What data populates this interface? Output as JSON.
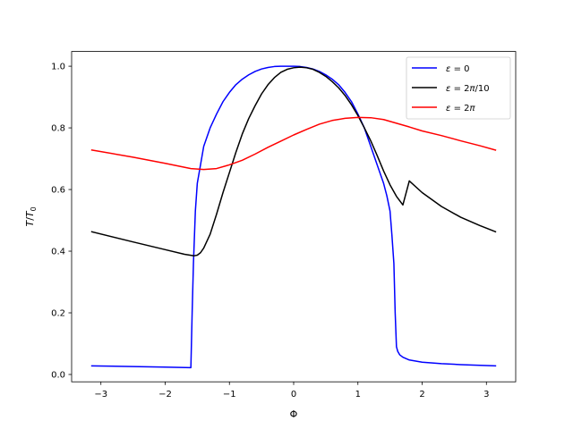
{
  "chart_data": {
    "type": "line",
    "title": "",
    "xlabel": "Φ",
    "ylabel": "T/T0",
    "xlim": [
      -3.456,
      3.456
    ],
    "ylim": [
      -0.0238,
      1.0478
    ],
    "xticks": [
      -3,
      -2,
      -1,
      0,
      1,
      2,
      3
    ],
    "yticks": [
      0.0,
      0.2,
      0.4,
      0.6,
      0.8,
      1.0
    ],
    "xtick_labels": [
      "−3",
      "−2",
      "−1",
      "0",
      "1",
      "2",
      "3"
    ],
    "ytick_labels": [
      "0.0",
      "0.2",
      "0.4",
      "0.6",
      "0.8",
      "1.0"
    ],
    "grid": false,
    "legend": "top-right",
    "series": [
      {
        "name": "ε = 0",
        "color": "#0000ff",
        "x": [
          -3.1416,
          -2.0,
          -1.6,
          -1.58,
          -1.56,
          -1.53,
          -1.5,
          -1.45,
          -1.4,
          -1.3,
          -1.2,
          -1.1,
          -1.0,
          -0.9,
          -0.8,
          -0.7,
          -0.6,
          -0.5,
          -0.4,
          -0.3,
          -0.2,
          -0.1,
          0.0,
          0.1,
          0.2,
          0.3,
          0.4,
          0.5,
          0.6,
          0.7,
          0.8,
          0.9,
          1.0,
          1.1,
          1.2,
          1.3,
          1.4,
          1.45,
          1.5,
          1.53,
          1.56,
          1.58,
          1.6,
          1.62,
          1.65,
          1.7,
          1.8,
          2.0,
          2.3,
          2.6,
          3.1416
        ],
        "y": [
          0.028,
          0.024,
          0.022,
          0.2,
          0.36,
          0.53,
          0.62,
          0.68,
          0.74,
          0.8,
          0.845,
          0.885,
          0.915,
          0.94,
          0.958,
          0.972,
          0.983,
          0.991,
          0.996,
          0.999,
          1.0,
          1.0,
          1.0,
          0.999,
          0.996,
          0.991,
          0.983,
          0.972,
          0.958,
          0.94,
          0.915,
          0.885,
          0.845,
          0.8,
          0.74,
          0.68,
          0.62,
          0.58,
          0.53,
          0.45,
          0.36,
          0.2,
          0.09,
          0.075,
          0.064,
          0.056,
          0.047,
          0.04,
          0.035,
          0.032,
          0.028
        ]
      },
      {
        "name": "ε = 2π/10",
        "color": "#000000",
        "x": [
          -3.1416,
          -2.5,
          -2.0,
          -1.7,
          -1.55,
          -1.5,
          -1.45,
          -1.4,
          -1.3,
          -1.2,
          -1.1,
          -1.0,
          -0.9,
          -0.8,
          -0.7,
          -0.6,
          -0.5,
          -0.4,
          -0.3,
          -0.2,
          -0.1,
          0.0,
          0.1,
          0.2,
          0.3,
          0.4,
          0.5,
          0.6,
          0.7,
          0.8,
          0.9,
          1.0,
          1.1,
          1.2,
          1.3,
          1.4,
          1.5,
          1.6,
          1.7,
          1.8,
          2.0,
          2.3,
          2.6,
          2.9,
          3.1416
        ],
        "y": [
          0.463,
          0.43,
          0.405,
          0.39,
          0.385,
          0.387,
          0.395,
          0.41,
          0.455,
          0.52,
          0.59,
          0.655,
          0.72,
          0.78,
          0.83,
          0.872,
          0.91,
          0.94,
          0.963,
          0.98,
          0.99,
          0.995,
          0.997,
          0.995,
          0.99,
          0.98,
          0.967,
          0.95,
          0.93,
          0.905,
          0.875,
          0.84,
          0.8,
          0.758,
          0.71,
          0.66,
          0.615,
          0.578,
          0.55,
          0.628,
          0.59,
          0.545,
          0.51,
          0.483,
          0.463
        ]
      },
      {
        "name": "ε = 2π",
        "color": "#ff0000",
        "x": [
          -3.1416,
          -2.5,
          -2.0,
          -1.6,
          -1.4,
          -1.2,
          -1.0,
          -0.8,
          -0.6,
          -0.4,
          -0.2,
          0.0,
          0.2,
          0.4,
          0.6,
          0.8,
          1.0,
          1.2,
          1.4,
          1.6,
          1.8,
          2.0,
          2.3,
          2.6,
          2.9,
          3.1416
        ],
        "y": [
          0.728,
          0.705,
          0.685,
          0.668,
          0.665,
          0.668,
          0.68,
          0.695,
          0.715,
          0.737,
          0.757,
          0.777,
          0.795,
          0.812,
          0.824,
          0.831,
          0.834,
          0.833,
          0.827,
          0.815,
          0.803,
          0.79,
          0.775,
          0.758,
          0.742,
          0.728
        ]
      }
    ]
  }
}
